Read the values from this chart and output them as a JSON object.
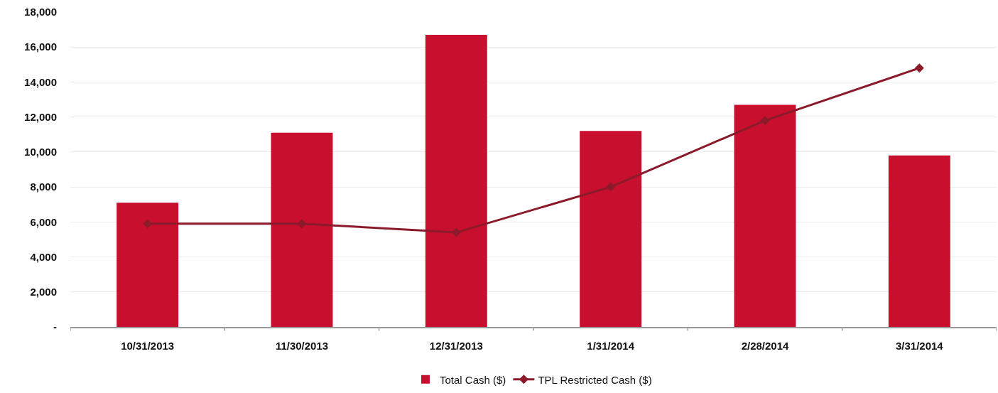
{
  "chart_data": {
    "type": "bar",
    "categories": [
      "10/31/2013",
      "11/30/2013",
      "12/31/2013",
      "1/31/2014",
      "2/28/2014",
      "3/31/2014"
    ],
    "series": [
      {
        "name": "Total Cash ($)",
        "color": "#c8102e",
        "values": [
          7100,
          11100,
          16700,
          11200,
          12700,
          9800
        ]
      },
      {
        "name": "TPL Restricted Cash ($)",
        "type": "line",
        "color": "#8b1a2b",
        "values": [
          5900,
          5900,
          5400,
          8000,
          11800,
          14800
        ]
      }
    ],
    "ylim": [
      0,
      18000
    ],
    "yticks": [
      {
        "value": 0,
        "label": "-"
      },
      {
        "value": 2000,
        "label": "2,000"
      },
      {
        "value": 4000,
        "label": "4,000"
      },
      {
        "value": 6000,
        "label": "6,000"
      },
      {
        "value": 8000,
        "label": "8,000"
      },
      {
        "value": 10000,
        "label": "10,000"
      },
      {
        "value": 12000,
        "label": "12,000"
      },
      {
        "value": 14000,
        "label": "14,000"
      },
      {
        "value": 16000,
        "label": "16,000"
      },
      {
        "value": 18000,
        "label": "18,000"
      }
    ],
    "grid": "y",
    "legend": "bottom",
    "marker": "diamond",
    "line_style": "solid"
  }
}
